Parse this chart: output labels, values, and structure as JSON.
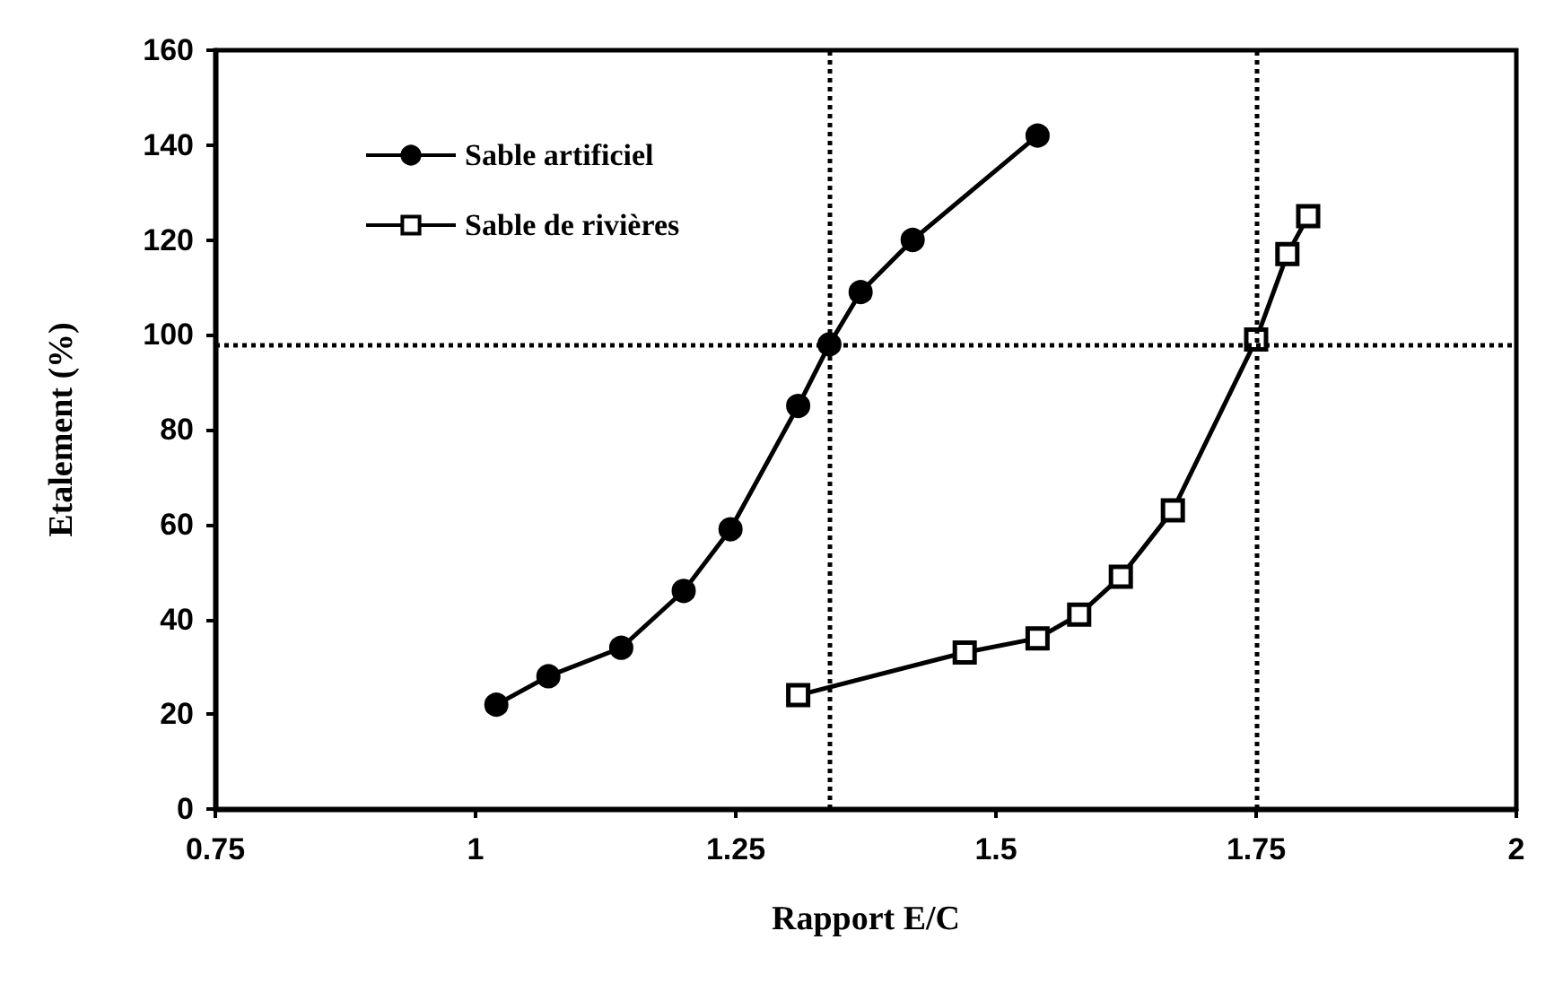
{
  "chart_data": {
    "type": "line",
    "xlabel": "Rapport E/C",
    "ylabel": "Etalement (%)",
    "xlim": [
      0.75,
      2
    ],
    "xticks": [
      0.75,
      1,
      1.25,
      1.5,
      1.75,
      2
    ],
    "ylim": [
      0,
      160
    ],
    "yticks": [
      0,
      20,
      40,
      60,
      80,
      100,
      120,
      140,
      160
    ],
    "grid": false,
    "legend": "top left",
    "line_style": "solid",
    "series": [
      {
        "name": "Sable artificiel",
        "color": "#000000",
        "marker": "circle",
        "x": [
          1.02,
          1.07,
          1.14,
          1.2,
          1.245,
          1.31,
          1.34,
          1.37,
          1.42,
          1.54
        ],
        "values": [
          22,
          28,
          34,
          46,
          59,
          85,
          98,
          109,
          120,
          142
        ]
      },
      {
        "name": "Sable de rivières",
        "color": "#000000",
        "marker": "square",
        "x": [
          1.31,
          1.47,
          1.54,
          1.58,
          1.62,
          1.67,
          1.75,
          1.78,
          1.8
        ],
        "values": [
          24,
          33,
          36,
          41,
          49,
          63,
          99,
          117,
          125
        ]
      }
    ],
    "ref_lines": [
      {
        "axis": "y",
        "value": 98,
        "line_style": "dotted"
      },
      {
        "axis": "x",
        "value": 1.34,
        "line_style": "dotted"
      },
      {
        "axis": "x",
        "value": 1.75,
        "line_style": "dotted"
      }
    ]
  }
}
